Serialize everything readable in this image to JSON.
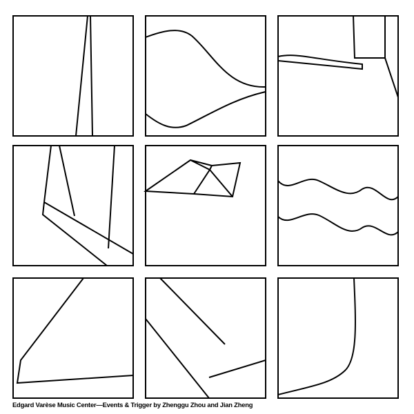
{
  "caption": "Edgard Varèse Music Center—Events & Trigger by Zhenggu Zhou and Jian Zheng",
  "colors": {
    "ink": "#000000",
    "paper": "#ffffff"
  }
}
